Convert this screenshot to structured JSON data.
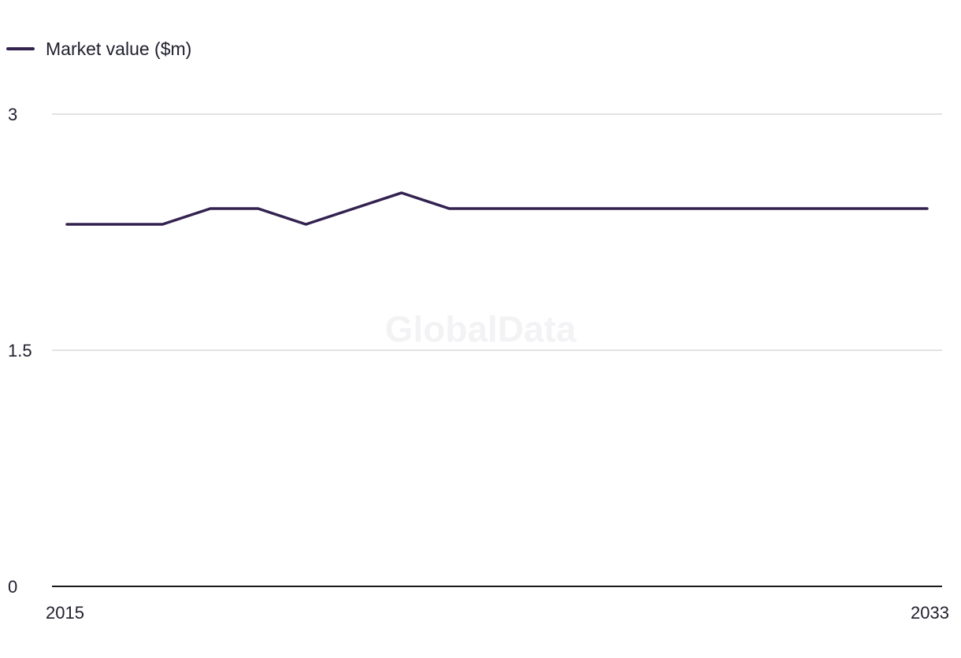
{
  "chart_data": {
    "type": "line",
    "title": "",
    "xlabel": "",
    "ylabel": "",
    "watermark": "GlobalData",
    "legend": {
      "placement": "top-left"
    },
    "grid": true,
    "xlim": [
      2015,
      2033
    ],
    "ylim": [
      0,
      3
    ],
    "y_ticks": [
      0,
      1.5,
      3
    ],
    "y_tick_labels": [
      "0",
      "1.5",
      "3"
    ],
    "x_ticks": [
      2015,
      2033
    ],
    "x_tick_labels": [
      "2015",
      "2033"
    ],
    "colors": {
      "series": "#33224f",
      "grid": "#d9d9d9",
      "axis": "#1a1a1a"
    },
    "series": [
      {
        "name": "Market value ($m)",
        "x": [
          2015,
          2016,
          2017,
          2018,
          2019,
          2020,
          2021,
          2022,
          2023,
          2024,
          2025,
          2026,
          2027,
          2028,
          2029,
          2030,
          2031,
          2032,
          2033
        ],
        "values": [
          2.3,
          2.3,
          2.3,
          2.4,
          2.4,
          2.3,
          2.4,
          2.5,
          2.4,
          2.4,
          2.4,
          2.4,
          2.4,
          2.4,
          2.4,
          2.4,
          2.4,
          2.4,
          2.4
        ]
      }
    ]
  }
}
